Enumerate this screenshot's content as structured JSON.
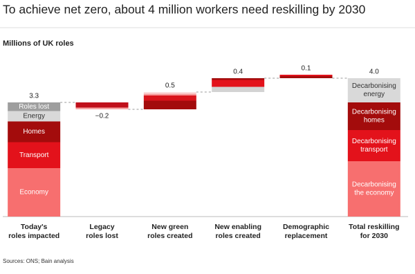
{
  "chart_data": {
    "type": "waterfall",
    "title": "To achieve net zero, about 4 million workers need reskilling by 2030",
    "subtitle": "Millions of UK roles",
    "source": "Sources: ONS; Bain analysis",
    "categories": [
      [
        "Today's",
        "roles impacted"
      ],
      [
        "Legacy",
        "roles lost"
      ],
      [
        "New green",
        "roles created"
      ],
      [
        "New enabling",
        "roles created"
      ],
      [
        "Demographic",
        "replacement"
      ],
      [
        "Total reskilling",
        "for 2030"
      ]
    ],
    "measures": [
      "absolute",
      "relative",
      "relative",
      "relative",
      "relative",
      "total"
    ],
    "values": [
      3.3,
      -0.2,
      0.5,
      0.4,
      0.1,
      4.0
    ],
    "value_labels": [
      "3.3",
      "−0.2",
      "0.5",
      "0.4",
      "0.1",
      "4.0"
    ],
    "segments": [
      [
        {
          "value": 1.4,
          "color": "#f76f6f",
          "label": [
            "Economy"
          ]
        },
        {
          "value": 0.75,
          "color": "#e3121b",
          "label": [
            "Transport"
          ]
        },
        {
          "value": 0.6,
          "color": "#a30c0c",
          "label": [
            "Homes"
          ]
        },
        {
          "value": 0.3,
          "color": "#d9d9d9",
          "label": [
            "Energy"
          ]
        },
        {
          "value": 0.25,
          "color": "#9e9e9e",
          "label": [
            "Roles lost"
          ]
        }
      ],
      [
        {
          "value": -0.15,
          "color": "#c0101b"
        },
        {
          "value": -0.05,
          "color": "#f7a6a6"
        }
      ],
      [
        {
          "value": 0.25,
          "color": "#a30c0c"
        },
        {
          "value": 0.15,
          "color": "#d9141b"
        },
        {
          "value": 0.05,
          "color": "#f59a9a"
        },
        {
          "value": 0.05,
          "color": "#fbdcdc"
        }
      ],
      [
        {
          "value": 0.15,
          "color": "#d3d3d3"
        },
        {
          "value": 0.2,
          "color": "#e3121b"
        },
        {
          "value": 0.05,
          "color": "#a30c0c"
        }
      ],
      [
        {
          "value": 0.06,
          "color": "#a30c0c"
        },
        {
          "value": 0.04,
          "color": "#e3121b"
        }
      ],
      [
        {
          "value": 1.6,
          "color": "#f76f6f",
          "label": [
            "Decarbonising",
            "the economy"
          ]
        },
        {
          "value": 0.9,
          "color": "#e3121b",
          "label": [
            "Decarbonising",
            "transport"
          ]
        },
        {
          "value": 0.8,
          "color": "#a30c0c",
          "label": [
            "Decarbonising",
            "homes"
          ]
        },
        {
          "value": 0.7,
          "color": "#d9d9d9",
          "label": [
            "Decarbonising",
            "energy"
          ]
        }
      ]
    ],
    "ylim": [
      0,
      4.4
    ]
  }
}
